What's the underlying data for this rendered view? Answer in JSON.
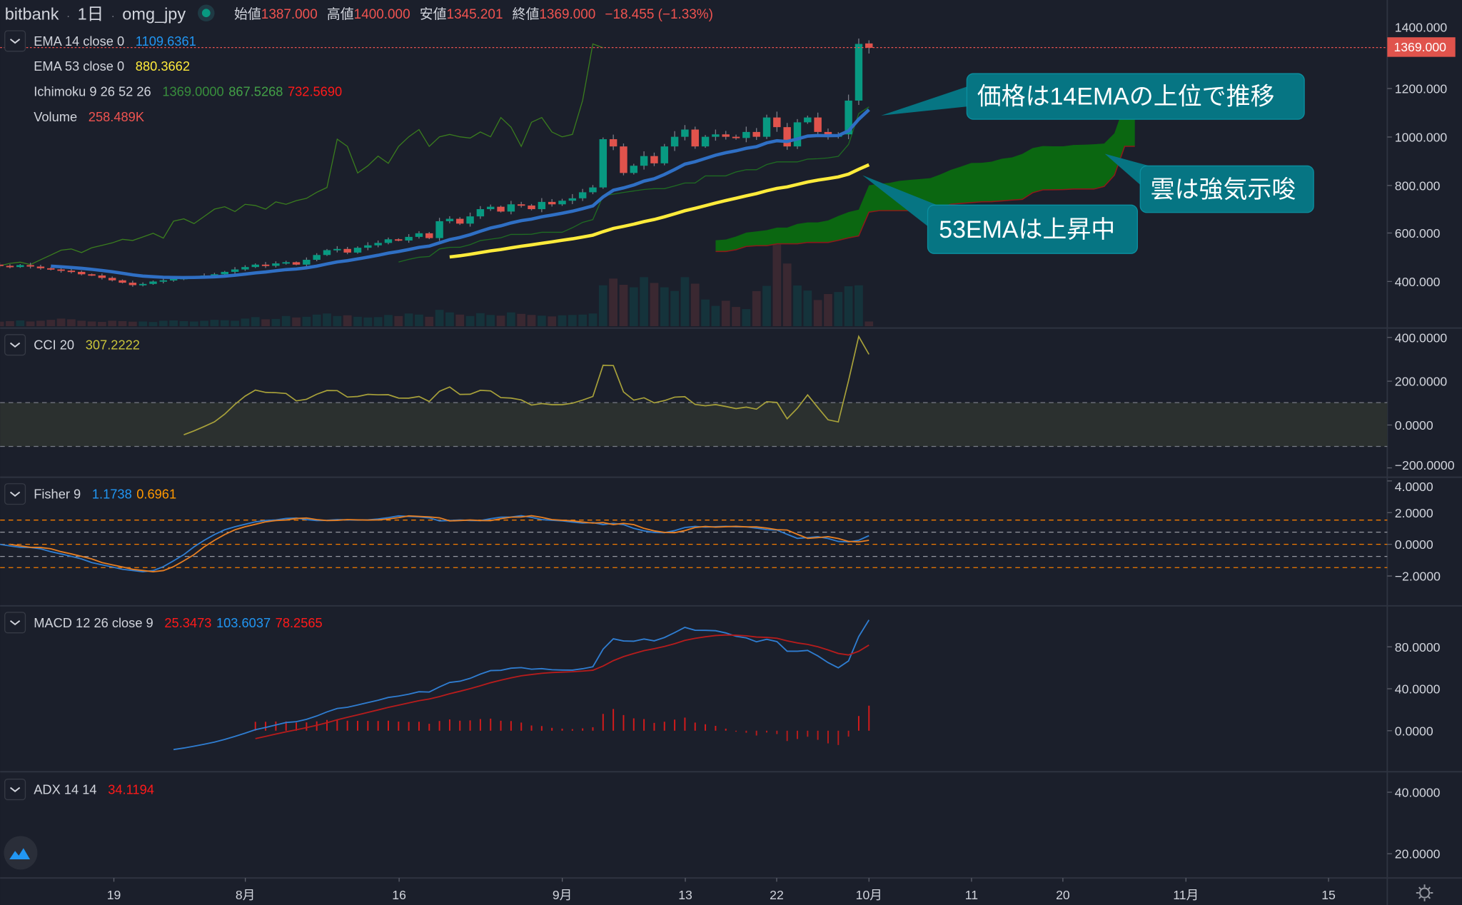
{
  "header": {
    "exchange": "bitbank",
    "interval": "1日",
    "symbol": "omg_jpy",
    "separator": "·",
    "open_label": "始値",
    "open": "1387.000",
    "high_label": "高値",
    "high": "1400.000",
    "low_label": "安値",
    "low": "1345.201",
    "close_label": "終値",
    "close": "1369.000",
    "change": "−18.455 (−1.33%)",
    "status_color": "#089981"
  },
  "legends": {
    "ema14": {
      "label": "EMA 14 close 0",
      "value": "1109.6361",
      "color": "#2196f3"
    },
    "ema53": {
      "label": "EMA 53 close 0",
      "value": "880.3662",
      "color": "#ffeb3b"
    },
    "ichimoku": {
      "label": "Ichimoku 9 26 52 26",
      "v1": "1369.0000",
      "v2": "867.5268",
      "v3": "732.5690"
    },
    "volume": {
      "label": "Volume",
      "value": "258.489K"
    },
    "cci": {
      "label": "CCI 20",
      "value": "307.2222"
    },
    "fisher": {
      "label": "Fisher 9",
      "v1": "1.1738",
      "v2": "0.6961"
    },
    "macd": {
      "label": "MACD 12 26 close 9",
      "v1": "25.3473",
      "v2": "103.6037",
      "v3": "78.2565"
    },
    "adx": {
      "label": "ADX 14 14",
      "value": "34.1194"
    }
  },
  "price_axis": {
    "ticks": [
      "1400.000",
      "1200.000",
      "1000.000",
      "800.000",
      "600.000",
      "400.000"
    ],
    "last_price_label": "1369.000"
  },
  "cci_axis": {
    "ticks": [
      "400.0000",
      "200.0000",
      "0.0000",
      "−200.0000"
    ]
  },
  "fisher_axis": {
    "ticks": [
      "4.0000",
      "2.0000",
      "0.0000",
      "−2.0000"
    ]
  },
  "macd_axis": {
    "ticks": [
      "80.0000",
      "40.0000",
      "0.0000"
    ]
  },
  "adx_axis": {
    "ticks": [
      "40.0000",
      "20.0000"
    ]
  },
  "time_axis": {
    "ticks": [
      "19",
      "8月",
      "16",
      "9月",
      "13",
      "22",
      "10月",
      "11",
      "20",
      "11月",
      "15"
    ]
  },
  "annotations": [
    {
      "text": "価格は14EMAの上位で推移"
    },
    {
      "text": "雲は強気示唆"
    },
    {
      "text": "53EMAは上昇中"
    }
  ],
  "colors": {
    "up": "#089981",
    "down": "#f23645",
    "background": "#1b1f2b",
    "callout": "#067583",
    "cloud": "#0b6b10"
  },
  "chart_data": {
    "type": "candlestick",
    "first_bar": "07-07",
    "last_bar": "10-01",
    "close": [
      470,
      465,
      460,
      468,
      462,
      455,
      450,
      445,
      440,
      430,
      425,
      415,
      405,
      395,
      385,
      390,
      400,
      405,
      410,
      415,
      420,
      425,
      430,
      440,
      450,
      460,
      470,
      465,
      475,
      480,
      470,
      490,
      510,
      530,
      535,
      520,
      540,
      550,
      560,
      575,
      570,
      585,
      600,
      580,
      650,
      660,
      640,
      670,
      700,
      710,
      690,
      720,
      715,
      700,
      730,
      720,
      735,
      745,
      770,
      790,
      990,
      960,
      850,
      880,
      920,
      890,
      960,
      1000,
      1030,
      960,
      1000,
      1010,
      1000,
      995,
      1020,
      1000,
      1080,
      1040,
      960,
      1060,
      1080,
      1020,
      1000,
      1010,
      1150,
      1385,
      1369
    ],
    "volume_k": [
      300,
      250,
      280,
      320,
      260,
      300,
      350,
      420,
      380,
      300,
      260,
      240,
      300,
      280,
      250,
      260,
      230,
      300,
      320,
      280,
      260,
      300,
      350,
      330,
      300,
      420,
      500,
      380,
      400,
      560,
      480,
      520,
      640,
      700,
      560,
      600,
      520,
      480,
      500,
      620,
      560,
      700,
      640,
      520,
      900,
      760,
      640,
      560,
      720,
      620,
      580,
      760,
      680,
      620,
      580,
      540,
      600,
      620,
      640,
      700,
      2250,
      2620,
      2280,
      2140,
      2700,
      2380,
      2140,
      1940,
      2700,
      2340,
      1470,
      1120,
      1400,
      1060,
      940,
      1930,
      2220,
      4500,
      3450,
      2240,
      1960,
      1440,
      1770,
      1880,
      2200,
      2250,
      258.489
    ],
    "price_range": [
      330,
      1420
    ],
    "indicators": [
      "EMA 14",
      "EMA 53",
      "Ichimoku 9 26 52 26",
      "Volume",
      "CCI 20",
      "Fisher 9",
      "MACD 12 26 9",
      "ADX 14"
    ]
  }
}
